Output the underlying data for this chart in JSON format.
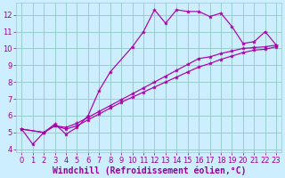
{
  "xlabel": "Windchill (Refroidissement éolien,°C)",
  "xlim": [
    -0.5,
    23.5
  ],
  "ylim": [
    3.8,
    12.7
  ],
  "yticks": [
    4,
    5,
    6,
    7,
    8,
    9,
    10,
    11,
    12
  ],
  "xticks": [
    0,
    1,
    2,
    3,
    4,
    5,
    6,
    7,
    8,
    9,
    10,
    11,
    12,
    13,
    14,
    15,
    16,
    17,
    18,
    19,
    20,
    21,
    22,
    23
  ],
  "bg_color": "#cceeff",
  "grid_color": "#99cccc",
  "line_color": "#aa00aa",
  "line1_x": [
    0,
    1,
    2,
    3,
    4,
    5,
    6,
    7,
    8,
    10,
    11,
    12,
    13,
    14,
    15,
    16,
    17,
    18,
    19,
    20,
    21,
    22,
    23
  ],
  "line1_y": [
    5.2,
    4.3,
    5.0,
    5.5,
    4.9,
    5.3,
    6.0,
    7.5,
    8.6,
    10.1,
    11.0,
    12.3,
    11.5,
    12.3,
    12.2,
    12.2,
    11.9,
    12.1,
    11.3,
    10.3,
    10.4,
    11.0,
    10.2
  ],
  "line2_x": [
    0,
    2,
    3,
    4,
    5,
    6,
    7,
    8,
    9,
    10,
    11,
    12,
    13,
    14,
    15,
    16,
    17,
    18,
    19,
    20,
    21,
    22,
    23
  ],
  "line2_y": [
    5.2,
    5.0,
    5.4,
    5.3,
    5.55,
    5.9,
    6.25,
    6.6,
    6.95,
    7.3,
    7.65,
    8.0,
    8.35,
    8.7,
    9.05,
    9.4,
    9.5,
    9.7,
    9.85,
    10.0,
    10.05,
    10.1,
    10.2
  ],
  "line3_x": [
    0,
    2,
    3,
    4,
    5,
    6,
    7,
    8,
    9,
    10,
    11,
    12,
    13,
    14,
    15,
    16,
    17,
    18,
    19,
    20,
    21,
    22,
    23
  ],
  "line3_y": [
    5.2,
    5.0,
    5.4,
    5.2,
    5.4,
    5.75,
    6.1,
    6.45,
    6.8,
    7.1,
    7.4,
    7.7,
    8.0,
    8.3,
    8.6,
    8.9,
    9.1,
    9.35,
    9.55,
    9.75,
    9.9,
    9.95,
    10.1
  ],
  "font_color": "#990099",
  "tick_fontsize": 6.0,
  "label_fontsize": 7.0
}
